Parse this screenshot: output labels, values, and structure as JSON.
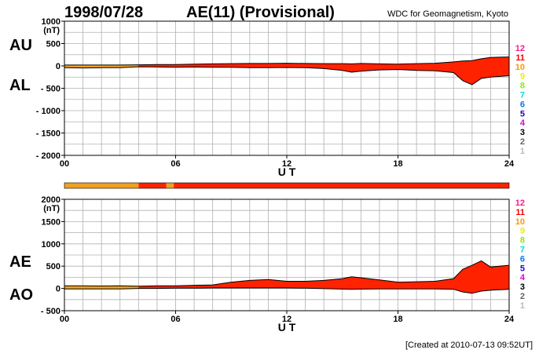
{
  "header": {
    "date": "1998/07/28",
    "title": "AE(11) (Provisional)",
    "source": "WDC for Geomagnetism, Kyoto"
  },
  "footer": {
    "created": "[Created at 2010-07-13 09:52UT]"
  },
  "colors": {
    "fill_red": "#ff2200",
    "fill_orange": "#f0a020",
    "grid": "#b0b0b0"
  },
  "station_legend": [
    {
      "label": "12",
      "color": "#ff1a8c"
    },
    {
      "label": "11",
      "color": "#ee0000"
    },
    {
      "label": "10",
      "color": "#ff9900"
    },
    {
      "label": "9",
      "color": "#eeee00"
    },
    {
      "label": "8",
      "color": "#88ee00"
    },
    {
      "label": "7",
      "color": "#00dddd"
    },
    {
      "label": "6",
      "color": "#0077ff"
    },
    {
      "label": "5",
      "color": "#2200cc"
    },
    {
      "label": "4",
      "color": "#dd00dd"
    },
    {
      "label": "3",
      "color": "#000000"
    },
    {
      "label": "2",
      "color": "#666666"
    },
    {
      "label": "1",
      "color": "#bbbbbb"
    }
  ],
  "station_bar": [
    {
      "from": 0,
      "to": 4,
      "color": "#f0a020"
    },
    {
      "from": 4,
      "to": 5.5,
      "color": "#ff2200"
    },
    {
      "from": 5.5,
      "to": 5.9,
      "color": "#f0a020"
    },
    {
      "from": 5.9,
      "to": 24,
      "color": "#ff2200"
    }
  ],
  "chart_data": [
    {
      "type": "area",
      "panel": "AU/AL",
      "series_labels": [
        "AU",
        "AL"
      ],
      "ylabel_unit": "(nT)",
      "xlabel": "U T",
      "ylim": [
        -2000,
        1000
      ],
      "yticks": [
        1000,
        500,
        0,
        -500,
        -1000,
        -1500,
        -2000
      ],
      "ytick_labels": [
        "1000",
        "500",
        "0",
        "- 500",
        "- 1000",
        "- 1500",
        "- 2000"
      ],
      "xlim": [
        0,
        24
      ],
      "xticks": [
        0,
        6,
        12,
        18,
        24
      ],
      "xtick_labels": [
        "00",
        "06",
        "12",
        "18",
        "24"
      ],
      "grid": true,
      "x": [
        0,
        1,
        2,
        3,
        4,
        5,
        6,
        7,
        8,
        9,
        10,
        11,
        12,
        13,
        14,
        15,
        15.5,
        16,
        17,
        18,
        19,
        20,
        21,
        21.5,
        22,
        22.5,
        23,
        24
      ],
      "upper": [
        20,
        20,
        20,
        20,
        25,
        30,
        30,
        40,
        45,
        50,
        55,
        55,
        60,
        55,
        50,
        50,
        45,
        55,
        45,
        40,
        50,
        60,
        90,
        110,
        120,
        160,
        190,
        200
      ],
      "lower": [
        -40,
        -45,
        -40,
        -40,
        -20,
        -25,
        -30,
        -25,
        -30,
        -30,
        -40,
        -40,
        -35,
        -40,
        -60,
        -100,
        -140,
        -120,
        -90,
        -80,
        -100,
        -110,
        -150,
        -330,
        -420,
        -280,
        -250,
        -220
      ]
    },
    {
      "type": "area",
      "panel": "AE/AO",
      "series_labels": [
        "AE",
        "AO"
      ],
      "ylabel_unit": "(nT)",
      "xlabel": "U T",
      "ylim": [
        -500,
        2000
      ],
      "yticks": [
        2000,
        1500,
        1000,
        500,
        0,
        -500
      ],
      "ytick_labels": [
        "2000",
        "1500",
        "1000",
        "500",
        "0",
        "- 500"
      ],
      "xlim": [
        0,
        24
      ],
      "xticks": [
        0,
        6,
        12,
        18,
        24
      ],
      "xtick_labels": [
        "00",
        "06",
        "12",
        "18",
        "24"
      ],
      "grid": true,
      "x": [
        0,
        1,
        2,
        3,
        4,
        5,
        6,
        7,
        8,
        9,
        10,
        11,
        12,
        13,
        14,
        15,
        15.5,
        16,
        17,
        18,
        19,
        20,
        21,
        21.5,
        22,
        22.5,
        23,
        24
      ],
      "upper": [
        60,
        60,
        55,
        60,
        50,
        60,
        60,
        70,
        80,
        140,
        180,
        200,
        160,
        160,
        180,
        220,
        260,
        240,
        190,
        140,
        150,
        160,
        220,
        430,
        520,
        620,
        480,
        520
      ],
      "lower": [
        -10,
        -10,
        -10,
        -10,
        0,
        0,
        5,
        5,
        10,
        10,
        10,
        10,
        10,
        5,
        -5,
        -15,
        -20,
        -15,
        -10,
        -10,
        -10,
        -10,
        -20,
        -80,
        -110,
        -60,
        -40,
        -20
      ]
    }
  ]
}
